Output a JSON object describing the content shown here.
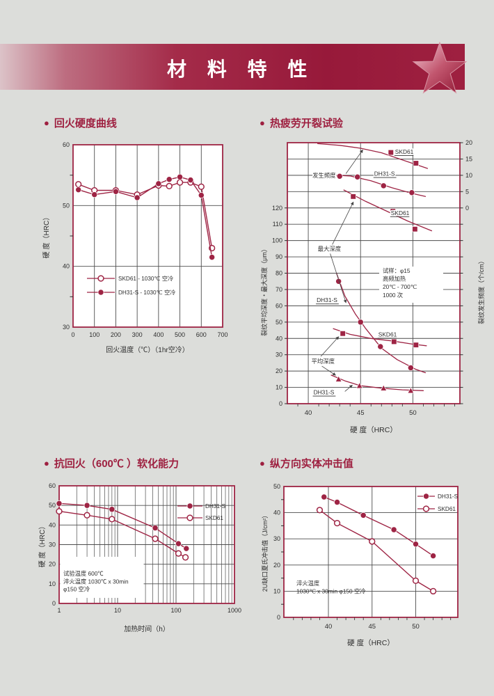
{
  "theme": {
    "accent": "#9e2444",
    "grid": "#4c4c4c",
    "text": "#2e2e2e",
    "page_bg": "#dcddda",
    "chart_bg": "#ffffff",
    "banner_dark": "#9e2040",
    "banner_light": "#dcc3c8"
  },
  "icons": {
    "bullet": "●",
    "star": "star"
  },
  "header": {
    "title": "材 料 特 性"
  },
  "sections": [
    {
      "title": "回火硬度曲线"
    },
    {
      "title": "热疲劳开裂试验"
    },
    {
      "title": "抗回火（600℃ ）软化能力"
    },
    {
      "title": "纵方向实体冲击值"
    }
  ],
  "chart_data": [
    {
      "type": "line",
      "title": "回火硬度曲线",
      "xlabel": "回火温度（℃）（1hr空冷）",
      "ylabel": "硬 度（HRC）",
      "xlim": [
        0,
        700
      ],
      "ylim": [
        30,
        60
      ],
      "xticks": [
        0,
        100,
        200,
        300,
        400,
        500,
        600,
        700
      ],
      "yticks": [
        30,
        40,
        50,
        60
      ],
      "yminorticks": [
        35,
        45,
        55
      ],
      "grid": "on",
      "legend_position": "bottom-left-inside",
      "series": [
        {
          "name": "SKD61 - 1030℃ 空冷",
          "marker": "circle-open",
          "x": [
            25,
            100,
            200,
            300,
            400,
            450,
            500,
            550,
            600,
            650
          ],
          "y": [
            53.5,
            52.5,
            52.5,
            51.8,
            53.3,
            53.2,
            53.8,
            53.8,
            53.1,
            43.0
          ]
        },
        {
          "name": "DH31-S - 1030℃ 空冷",
          "marker": "circle-filled",
          "x": [
            25,
            100,
            200,
            300,
            400,
            450,
            500,
            550,
            600,
            650
          ],
          "y": [
            52.6,
            51.8,
            52.3,
            51.3,
            53.6,
            54.3,
            54.7,
            54.2,
            51.7,
            41.5
          ]
        }
      ]
    },
    {
      "type": "scatter-line",
      "title": "热疲劳开裂试验",
      "xlabel": "硬 度（HRC）",
      "ylabel_left": "裂纹平均深度・最大深度（μm）",
      "ylabel_right": "裂纹发生频度（个/cm）",
      "xlim": [
        38,
        54.5
      ],
      "xticks": [
        40,
        45,
        50
      ],
      "ylim_left": [
        0,
        160
      ],
      "left_tick_step": 10,
      "left_tick_max": 120,
      "right_axis": {
        "ticks": [
          0,
          5,
          10,
          15,
          20
        ],
        "zero_at_left": 120,
        "scale": 2
      },
      "note_lines": [
        "试样：φ15",
        "高频加热",
        "20℃ - 700℃",
        "1000 次"
      ],
      "grid": "on",
      "series": [
        {
          "group": "发生频度",
          "name": "SKD61",
          "axis": "right",
          "marker": "square",
          "curve_x": [
            40.9,
            43,
            45,
            47,
            49,
            51.4
          ],
          "curve_y": [
            19.7,
            19.2,
            18.3,
            16.9,
            14.7,
            12.1
          ],
          "px": [
            47.9,
            50.3
          ],
          "py": [
            17.0,
            13.7
          ]
        },
        {
          "group": "发生频度",
          "name": "DH31-S",
          "axis": "right",
          "marker": "circle",
          "curve_x": [
            42.0,
            44,
            46,
            48,
            50,
            51.2
          ],
          "curve_y": [
            10.1,
            9.8,
            8.3,
            6.2,
            4.4,
            3.5
          ],
          "px": [
            43.0,
            44.7,
            47.2,
            49.9
          ],
          "py": [
            9.7,
            9.5,
            6.8,
            4.7
          ]
        },
        {
          "group": "最大深度",
          "name": "SKD61",
          "axis": "left",
          "marker": "square",
          "curve_x": [
            43.4,
            45.5,
            47.5,
            49.5,
            51.8
          ],
          "curve_y": [
            131,
            124,
            118,
            112,
            106
          ],
          "px": [
            44.3,
            48.1,
            50.2
          ],
          "py": [
            127,
            118,
            107
          ]
        },
        {
          "group": "最大深度",
          "name": "DH31-S",
          "axis": "left",
          "marker": "circle",
          "curve_x": [
            42.7,
            43.5,
            44.5,
            45.5,
            47,
            48.5,
            50.3,
            51.2
          ],
          "curve_y": [
            80,
            66,
            55,
            46,
            34,
            27,
            21,
            19
          ],
          "px": [
            42.9,
            45.0,
            46.9,
            49.8
          ],
          "py": [
            75,
            50,
            35,
            22
          ]
        },
        {
          "group": "平均深度",
          "name": "SKD61",
          "axis": "left",
          "marker": "square",
          "curve_x": [
            42.4,
            44,
            46,
            48,
            50,
            51.3
          ],
          "curve_y": [
            46,
            42.5,
            40,
            38.5,
            36.5,
            35.5
          ],
          "px": [
            43.3,
            48.2,
            50.3
          ],
          "py": [
            43,
            38,
            36
          ]
        },
        {
          "group": "平均深度",
          "name": "DH31-S",
          "axis": "left",
          "marker": "triangle",
          "curve_x": [
            42.2,
            43.5,
            45,
            47,
            49,
            51
          ],
          "curve_y": [
            17.5,
            14,
            11,
            9.5,
            8.5,
            8
          ],
          "px": [
            42.9,
            44.9,
            47.2,
            49.8
          ],
          "py": [
            15,
            11,
            9.5,
            8
          ]
        }
      ],
      "labels": [
        {
          "text": "发生频度",
          "x": 40.4,
          "y": 140,
          "underline": false
        },
        {
          "text": "SKD61",
          "x": 48.3,
          "y": 154.5,
          "underline": true
        },
        {
          "text": "DH31-S",
          "x": 46.3,
          "y": 141,
          "underline": true
        },
        {
          "text": "SKD61",
          "x": 47.9,
          "y": 117,
          "underline": true
        },
        {
          "text": "最大深度",
          "x": 40.9,
          "y": 95,
          "underline": false
        },
        {
          "text": "DH31-S",
          "x": 40.8,
          "y": 63.5,
          "underline": true
        },
        {
          "text": "SKD61",
          "x": 46.7,
          "y": 42.5,
          "underline": true
        },
        {
          "text": "平均深度",
          "x": 40.3,
          "y": 26,
          "underline": false
        },
        {
          "text": "DH31-S",
          "x": 40.5,
          "y": 7,
          "underline": true
        }
      ],
      "arrows": [
        {
          "x1": 43.6,
          "y1": 141,
          "x2": 45.2,
          "y2": 155.5
        },
        {
          "x1": 42.3,
          "y1": 97.5,
          "x2": 44.3,
          "y2": 123.5
        },
        {
          "x1": 42.1,
          "y1": 92,
          "x2": 43.6,
          "y2": 62
        },
        {
          "x1": 41.2,
          "y1": 29,
          "x2": 42.9,
          "y2": 41
        },
        {
          "x1": 41.3,
          "y1": 23,
          "x2": 42.6,
          "y2": 17.5
        },
        {
          "x1": 43.5,
          "y1": 7.5,
          "x2": 44.2,
          "y2": 11.3
        }
      ]
    },
    {
      "type": "line",
      "title": "抗回火（600℃ ）软化能力",
      "xlabel": "加热时间（h）",
      "ylabel": "硬 度（HRC）",
      "xscale": "log",
      "xlim": [
        1,
        1000
      ],
      "ylim": [
        0,
        60
      ],
      "xticks": [
        1,
        10,
        100,
        1000
      ],
      "yticks": [
        0,
        10,
        20,
        30,
        40,
        50,
        60
      ],
      "grid": "on",
      "legend_position": "top-right-inside",
      "note_lines": [
        "试验温度 600℃",
        "淬火温度 1030℃ x 30min",
        "φ150 空冷"
      ],
      "series": [
        {
          "name": "DH31-S",
          "marker": "circle-filled",
          "x": [
            1,
            3,
            8,
            44,
            110,
            150
          ],
          "y": [
            51,
            50,
            48,
            38.5,
            30.5,
            28
          ]
        },
        {
          "name": "SKD61",
          "marker": "circle-open",
          "x": [
            1,
            3,
            8,
            44,
            110,
            145
          ],
          "y": [
            47,
            45,
            43,
            33,
            25.5,
            23.5
          ]
        }
      ]
    },
    {
      "type": "line",
      "title": "纵方向实体冲击值",
      "xlabel": "硬 度（HRC）",
      "ylabel": "2U缺口夏氏冲击值（J/cm²）",
      "xlim": [
        34.9,
        54.8
      ],
      "ylim": [
        0,
        50
      ],
      "xticks": [
        40,
        45,
        50
      ],
      "yticks": [
        0,
        10,
        20,
        30,
        40,
        50
      ],
      "yminorticks": [
        5,
        15,
        25,
        35,
        45
      ],
      "grid": "on",
      "legend_position": "top-right-inside",
      "note_lines": [
        "淬火温度",
        "1030℃ x 30min φ150 空冷"
      ],
      "series": [
        {
          "name": "DH31-S",
          "marker": "circle-filled",
          "x": [
            39.5,
            41,
            44,
            47.5,
            50,
            52
          ],
          "y": [
            46,
            44,
            39,
            33.5,
            28,
            23.5
          ]
        },
        {
          "name": "SKD61",
          "marker": "circle-open",
          "x": [
            39,
            41,
            45,
            50,
            52
          ],
          "y": [
            41,
            36,
            29,
            14,
            10
          ]
        }
      ]
    }
  ]
}
